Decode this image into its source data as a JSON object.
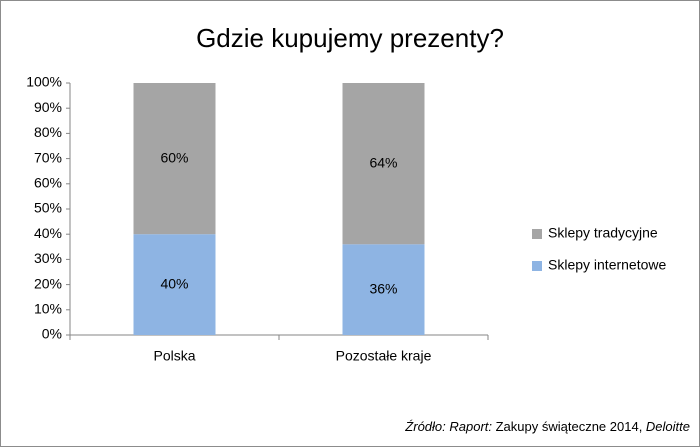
{
  "chart_data": {
    "type": "stacked_bar",
    "title": "Gdzie kupujemy prezenty?",
    "categories": [
      "Polska",
      "Pozostałe kraje"
    ],
    "series": [
      {
        "name": "Sklepy internetowe",
        "color": "#8eb4e3",
        "values": [
          40,
          36
        ],
        "value_labels": [
          "40%",
          "36%"
        ]
      },
      {
        "name": "Sklepy tradycyjne",
        "color": "#a5a5a5",
        "values": [
          60,
          64
        ],
        "value_labels": [
          "60%",
          "64%"
        ]
      }
    ],
    "ylim": [
      0,
      100
    ],
    "yticks": [
      {
        "value": 0,
        "label": "0%"
      },
      {
        "value": 10,
        "label": "10%"
      },
      {
        "value": 20,
        "label": "20%"
      },
      {
        "value": 30,
        "label": "30%"
      },
      {
        "value": 40,
        "label": "40%"
      },
      {
        "value": 50,
        "label": "50%"
      },
      {
        "value": 60,
        "label": "60%"
      },
      {
        "value": 70,
        "label": "70%"
      },
      {
        "value": 80,
        "label": "80%"
      },
      {
        "value": 90,
        "label": "90%"
      },
      {
        "value": 100,
        "label": "100%"
      }
    ],
    "grid": false,
    "legend": "right",
    "source": [
      {
        "text": "Źródło: Raport:",
        "italic": true
      },
      {
        "text": " Zakupy świąteczne 2014, ",
        "italic": false
      },
      {
        "text": "Deloitte",
        "italic": true
      }
    ]
  }
}
